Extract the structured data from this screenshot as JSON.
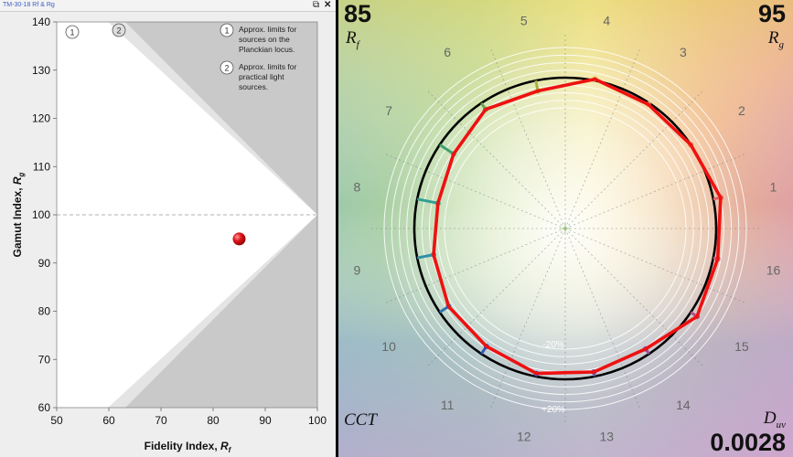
{
  "window": {
    "title": "TM-30-18 Rf & Rg",
    "restore_icon": "restore-window-icon",
    "close_icon": "close-icon"
  },
  "chart_data": [
    {
      "type": "scatter",
      "xlabel": "Fidelity Index, Rf",
      "ylabel": "Gamut Index, Rg",
      "xlim": [
        50,
        100
      ],
      "ylim": [
        60,
        140
      ],
      "xticks": [
        "50",
        "60",
        "70",
        "80",
        "90",
        "100"
      ],
      "yticks": [
        "60",
        "70",
        "80",
        "90",
        "100",
        "110",
        "120",
        "130",
        "140"
      ],
      "reference_line_y": 100,
      "points": [
        {
          "x": 85,
          "y": 95
        }
      ],
      "point_color": "#e0141c",
      "annotations": [
        {
          "marker": "1",
          "text": "Approx. limits for sources on the Planckian locus."
        },
        {
          "marker": "2",
          "text": "Approx. limits for practical light sources."
        }
      ],
      "grid": false
    },
    {
      "type": "line",
      "subtype": "color-vector-graphic",
      "rf_value": "85",
      "rf_label": "R",
      "rf_sub": "f",
      "rg_value": "95",
      "rg_label": "R",
      "rg_sub": "g",
      "cct_label": "CCT",
      "duv_label": "D",
      "duv_sub": "uv",
      "duv_value": "0.0028",
      "ring_labels": [
        "-20%",
        "+20%"
      ],
      "hue_bins": [
        "1",
        "2",
        "3",
        "4",
        "5",
        "6",
        "7",
        "8",
        "9",
        "10",
        "11",
        "12",
        "13",
        "14",
        "15",
        "16"
      ],
      "reference_radius": 1.0,
      "test_radii": [
        1.05,
        1.0,
        0.99,
        1.01,
        0.93,
        0.95,
        0.89,
        0.86,
        0.89,
        0.93,
        0.94,
        0.98,
        0.97,
        0.96,
        1.05,
        1.03
      ],
      "test_color": "#ee1111",
      "reference_color": "#000000"
    }
  ]
}
